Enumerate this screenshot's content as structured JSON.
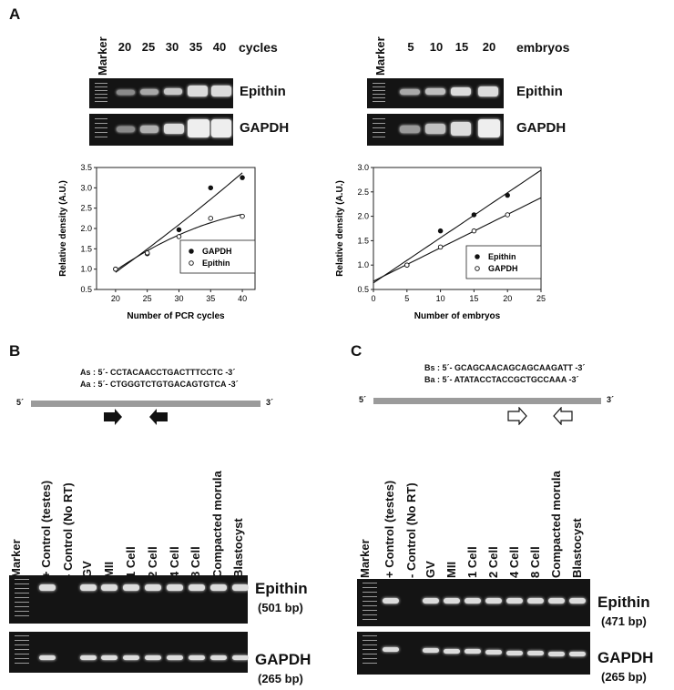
{
  "panels": {
    "a": "A",
    "b": "B",
    "c": "C"
  },
  "gelA1": {
    "marker": "Marker",
    "lanes": [
      "20",
      "25",
      "30",
      "35",
      "40"
    ],
    "unit": "cycles",
    "rows": [
      "Epithin",
      "GAPDH"
    ]
  },
  "gelA2": {
    "marker": "Marker",
    "lanes": [
      "5",
      "10",
      "15",
      "20"
    ],
    "unit": "embryos",
    "rows": [
      "Epithin",
      "GAPDH"
    ]
  },
  "chart_data": [
    {
      "type": "scatter",
      "xlabel": "Number of PCR cycles",
      "ylabel": "Relative density (A.U.)",
      "xlim": [
        17,
        42
      ],
      "ylim": [
        0.5,
        3.5
      ],
      "xticks": [
        "20",
        "25",
        "30",
        "35",
        "40"
      ],
      "yticks": [
        "0.5",
        "1.0",
        "1.5",
        "2.0",
        "2.5",
        "3.0",
        "3.5"
      ],
      "legend": "bottom-right",
      "series": [
        {
          "name": "GAPDH",
          "marker": "filled",
          "x": [
            20,
            25,
            30,
            35,
            40
          ],
          "y": [
            1.0,
            1.38,
            1.97,
            3.0,
            3.25
          ]
        },
        {
          "name": "Epithin",
          "marker": "open",
          "x": [
            20,
            25,
            30,
            35,
            40
          ],
          "y": [
            1.0,
            1.4,
            1.8,
            2.25,
            2.3
          ]
        }
      ]
    },
    {
      "type": "scatter",
      "xlabel": "Number of embryos",
      "ylabel": "Relative density (A.U.)",
      "xlim": [
        0,
        25
      ],
      "ylim": [
        0.5,
        3.0
      ],
      "xticks": [
        "0",
        "5",
        "10",
        "15",
        "20",
        "25"
      ],
      "yticks": [
        "0.5",
        "1.0",
        "1.5",
        "2.0",
        "2.5",
        "3.0"
      ],
      "legend": "bottom-right",
      "series": [
        {
          "name": "Epithin",
          "marker": "filled",
          "x": [
            5,
            10,
            15,
            20
          ],
          "y": [
            1.0,
            1.7,
            2.03,
            2.43
          ]
        },
        {
          "name": "GAPDH",
          "marker": "open",
          "x": [
            5,
            10,
            15,
            20
          ],
          "y": [
            1.0,
            1.37,
            1.7,
            2.03
          ]
        }
      ]
    }
  ],
  "panelB": {
    "primer_s": "As : 5´- CCTACAACCTGACTTTCCTC -3´",
    "primer_a": "Aa : 5´- CTGGGTCTGTGACAGTGTCA -3´",
    "five": "5´",
    "three": "3´",
    "lanes": [
      "Marker",
      "+ Control (testes)",
      "- Control (No RT)",
      "GV",
      "MII",
      "1 Cell",
      "2 Cell",
      "4 Cell",
      "8 Cell",
      "Compacted morula",
      "Blastocyst"
    ],
    "row1": "Epithin",
    "row1_bp": "(501 bp)",
    "row2": "GAPDH",
    "row2_bp": "(265 bp)"
  },
  "panelC": {
    "primer_s": "Bs : 5´- GCAGCAACAGCAGCAAGATT -3´",
    "primer_a": "Ba : 5´- ATATACCTACCGCTGCCAAA -3´",
    "five": "5´",
    "three": "3´",
    "lanes": [
      "Marker",
      "+ Control (testes)",
      "- Control (No RT)",
      "GV",
      "MII",
      "1 Cell",
      "2 Cell",
      "4 Cell",
      "8 Cell",
      "Compacted morula",
      "Blastocyst"
    ],
    "row1": "Epithin",
    "row1_bp": "(471 bp)",
    "row2": "GAPDH",
    "row2_bp": "(265 bp)"
  }
}
